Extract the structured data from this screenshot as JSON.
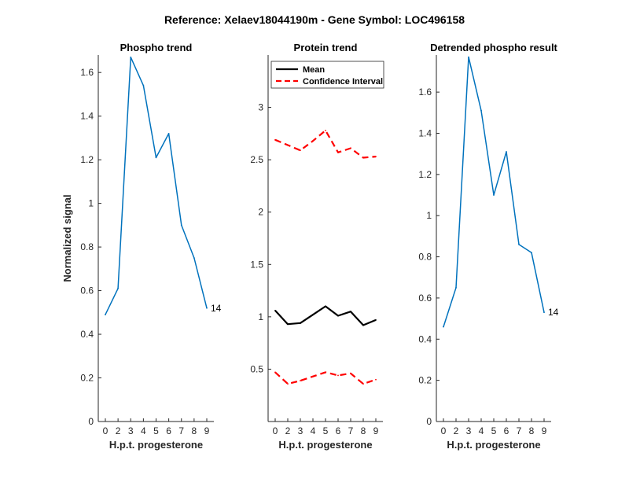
{
  "figure_title": "Reference:  Xelaev18044190m - Gene Symbol:  LOC496158",
  "colors": {
    "series": "#0072BD",
    "mean": "#000000",
    "ci": "#FF0000",
    "axis": "#262626"
  },
  "chart_data": [
    {
      "type": "line",
      "title": "Phospho trend",
      "xlabel": "H.p.t. progesterone",
      "ylabel": "Normalized signal",
      "x_ticks": [
        "0",
        "2",
        "3",
        "4",
        "5",
        "6",
        "7",
        "8",
        "9"
      ],
      "ylim": [
        0,
        1.68
      ],
      "y_ticks": [
        "0",
        "0.2",
        "0.4",
        "0.6",
        "0.8",
        "1",
        "1.2",
        "1.4",
        "1.6"
      ],
      "series": [
        {
          "values": [
            0.49,
            0.61,
            1.67,
            1.54,
            1.21,
            1.32,
            0.9,
            0.75,
            0.52
          ]
        }
      ],
      "end_label": "14"
    },
    {
      "type": "line",
      "title": "Protein trend",
      "xlabel": "H.p.t. progesterone",
      "ylabel": "",
      "x_ticks": [
        "0",
        "2",
        "3",
        "4",
        "5",
        "6",
        "7",
        "8",
        "9"
      ],
      "ylim": [
        0,
        3.5
      ],
      "y_ticks": [
        "0.5",
        "1",
        "1.5",
        "2",
        "2.5",
        "3"
      ],
      "legend": {
        "placement": "top-left",
        "entries": [
          "Mean",
          "Confidence Interval"
        ]
      },
      "series": [
        {
          "name": "Mean",
          "values": [
            1.06,
            0.93,
            0.94,
            1.02,
            1.1,
            1.01,
            1.05,
            0.92,
            0.97
          ]
        },
        {
          "name": "Confidence Interval",
          "values": [
            2.69,
            2.64,
            2.59,
            2.68,
            2.78,
            2.57,
            2.61,
            2.52,
            2.53
          ]
        },
        {
          "name": "Confidence Interval",
          "values": [
            0.47,
            0.36,
            0.39,
            0.43,
            0.47,
            0.44,
            0.46,
            0.36,
            0.4
          ]
        }
      ]
    },
    {
      "type": "line",
      "title": "Detrended phospho result",
      "xlabel": "H.p.t. progesterone",
      "ylabel": "",
      "x_ticks": [
        "0",
        "2",
        "3",
        "4",
        "5",
        "6",
        "7",
        "8",
        "9"
      ],
      "ylim": [
        0,
        1.78
      ],
      "y_ticks": [
        "0",
        "0.2",
        "0.4",
        "0.6",
        "0.8",
        "1",
        "1.2",
        "1.4",
        "1.6"
      ],
      "series": [
        {
          "values": [
            0.46,
            0.65,
            1.77,
            1.51,
            1.1,
            1.31,
            0.86,
            0.82,
            0.53
          ]
        }
      ],
      "end_label": "14"
    }
  ]
}
